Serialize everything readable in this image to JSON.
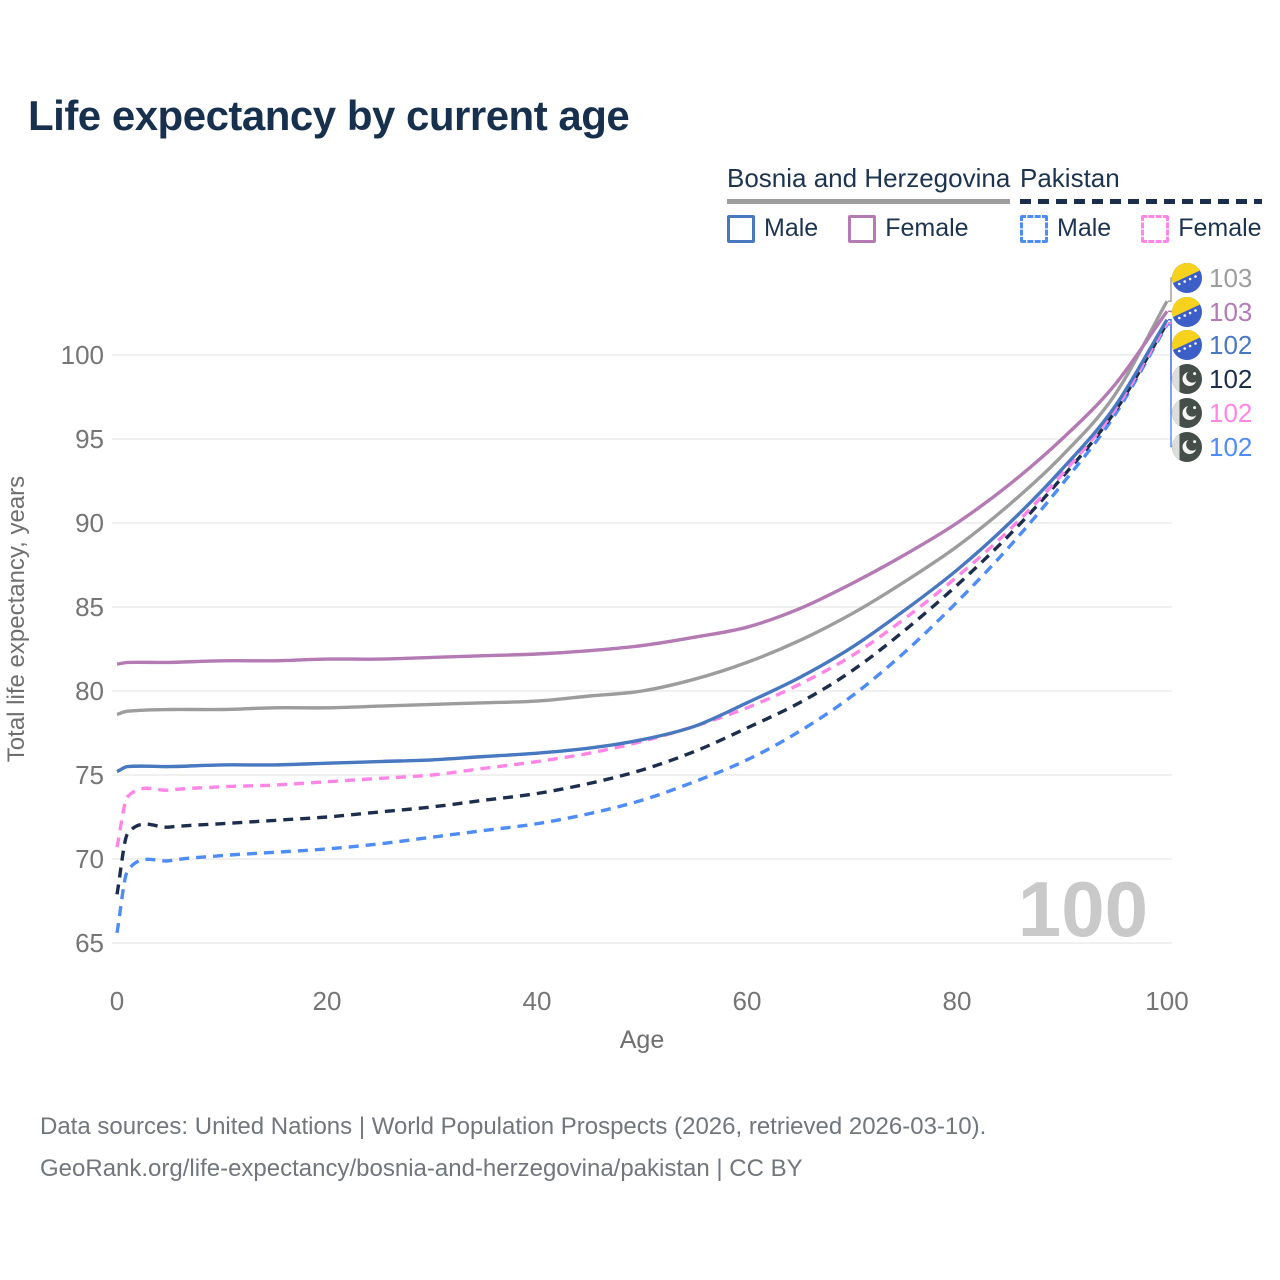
{
  "title": "Life expectancy by current age",
  "legend": {
    "groups": [
      {
        "label": "Bosnia and Herzegovina",
        "line_style": "solid",
        "color": "#9d9d9d",
        "items": [
          {
            "label": "Male",
            "color": "#4878bf",
            "box_style": "solid"
          },
          {
            "label": "Female",
            "color": "#b47ab4",
            "box_style": "solid"
          }
        ]
      },
      {
        "label": "Pakistan",
        "line_style": "dashed",
        "color": "#1d2e4d",
        "items": [
          {
            "label": "Male",
            "color": "#4e8cf7",
            "box_style": "dashed"
          },
          {
            "label": "Female",
            "color": "#ff85e6",
            "box_style": "dashed"
          }
        ]
      }
    ]
  },
  "end_labels": [
    {
      "value": "103",
      "flag": "bosnia-and-herzegovina",
      "series": "bosnia_total",
      "color": "#9d9d9d"
    },
    {
      "value": "103",
      "flag": "bosnia-and-herzegovina",
      "series": "bosnia_female",
      "color": "#b47ab4"
    },
    {
      "value": "102",
      "flag": "bosnia-and-herzegovina",
      "series": "bosnia_male",
      "color": "#4878bf"
    },
    {
      "value": "102",
      "flag": "pakistan",
      "series": "pakistan_total",
      "color": "#1d2e4d"
    },
    {
      "value": "102",
      "flag": "pakistan",
      "series": "pakistan_female",
      "color": "#ff85e6"
    },
    {
      "value": "102",
      "flag": "pakistan",
      "series": "pakistan_male",
      "color": "#4e8cf7"
    }
  ],
  "watermark": "100",
  "footer": {
    "line1": "Data sources: United Nations | World Population Prospects (2026, retrieved 2026-03-10).",
    "line2": "GeoRank.org/life-expectancy/bosnia-and-herzegovina/pakistan | CC BY"
  },
  "colors": {
    "title": "#17304d",
    "legend_text": "#1d3450",
    "tick": "#757575",
    "grid": "#e8e8e8",
    "watermark": "#c9c9c9",
    "footer": "#70767c"
  },
  "chart_data": {
    "type": "line",
    "title": "Life expectancy by current age",
    "xlabel": "Age",
    "ylabel": "Total life expectancy, years",
    "x_ticks": [
      0,
      20,
      40,
      60,
      80,
      100
    ],
    "y_ticks": [
      65,
      70,
      75,
      80,
      85,
      90,
      95,
      100
    ],
    "xlim": [
      0,
      100
    ],
    "ylim": [
      63.5,
      104
    ],
    "grid": "horizontal",
    "legend_position": "top-right",
    "ages": [
      0,
      1,
      5,
      10,
      15,
      20,
      25,
      30,
      35,
      40,
      45,
      50,
      55,
      60,
      65,
      70,
      75,
      80,
      85,
      90,
      95,
      100
    ],
    "series": [
      {
        "key": "bosnia_total",
        "name": "Bosnia and Herzegovina — Total",
        "color": "#9d9d9d",
        "dash": false,
        "end_label": 103,
        "values": [
          78.6,
          78.8,
          78.9,
          78.9,
          79.0,
          79.0,
          79.1,
          79.2,
          79.3,
          79.4,
          79.7,
          80.0,
          80.7,
          81.7,
          83.0,
          84.6,
          86.5,
          88.6,
          91.1,
          94.0,
          97.6,
          103.2
        ]
      },
      {
        "key": "bosnia_female",
        "name": "Bosnia and Herzegovina — Female",
        "color": "#b47ab4",
        "dash": false,
        "end_label": 103,
        "values": [
          81.6,
          81.7,
          81.7,
          81.8,
          81.8,
          81.9,
          81.9,
          82.0,
          82.1,
          82.2,
          82.4,
          82.7,
          83.2,
          83.8,
          84.9,
          86.4,
          88.1,
          90.0,
          92.3,
          95.0,
          98.2,
          102.6
        ]
      },
      {
        "key": "bosnia_male",
        "name": "Bosnia and Herzegovina — Male",
        "color": "#4878bf",
        "dash": false,
        "end_label": 102,
        "values": [
          75.2,
          75.5,
          75.5,
          75.6,
          75.6,
          75.7,
          75.8,
          75.9,
          76.1,
          76.3,
          76.6,
          77.1,
          77.9,
          79.3,
          80.8,
          82.6,
          84.8,
          87.2,
          90.0,
          93.2,
          96.9,
          102.1
        ]
      },
      {
        "key": "pakistan_total",
        "name": "Pakistan — Total",
        "color": "#1d2e4d",
        "dash": true,
        "end_label": 102,
        "values": [
          67.9,
          71.5,
          71.9,
          72.1,
          72.3,
          72.5,
          72.8,
          73.1,
          73.5,
          73.9,
          74.5,
          75.3,
          76.4,
          77.8,
          79.3,
          81.2,
          83.6,
          86.3,
          89.3,
          92.7,
          96.6,
          101.9
        ]
      },
      {
        "key": "pakistan_female",
        "name": "Pakistan — Female",
        "color": "#ff85e6",
        "dash": true,
        "end_label": 102,
        "values": [
          70.7,
          73.7,
          74.1,
          74.3,
          74.4,
          74.6,
          74.8,
          75.0,
          75.4,
          75.8,
          76.3,
          77.0,
          77.9,
          79.0,
          80.4,
          82.1,
          84.3,
          86.8,
          89.6,
          92.9,
          96.7,
          101.9
        ]
      },
      {
        "key": "pakistan_male",
        "name": "Pakistan — Male",
        "color": "#4e8cf7",
        "dash": true,
        "end_label": 102,
        "values": [
          65.6,
          69.3,
          69.9,
          70.2,
          70.4,
          70.6,
          70.9,
          71.3,
          71.7,
          72.1,
          72.7,
          73.5,
          74.6,
          75.9,
          77.6,
          79.7,
          82.3,
          85.3,
          88.6,
          92.3,
          96.4,
          101.8
        ]
      }
    ]
  }
}
